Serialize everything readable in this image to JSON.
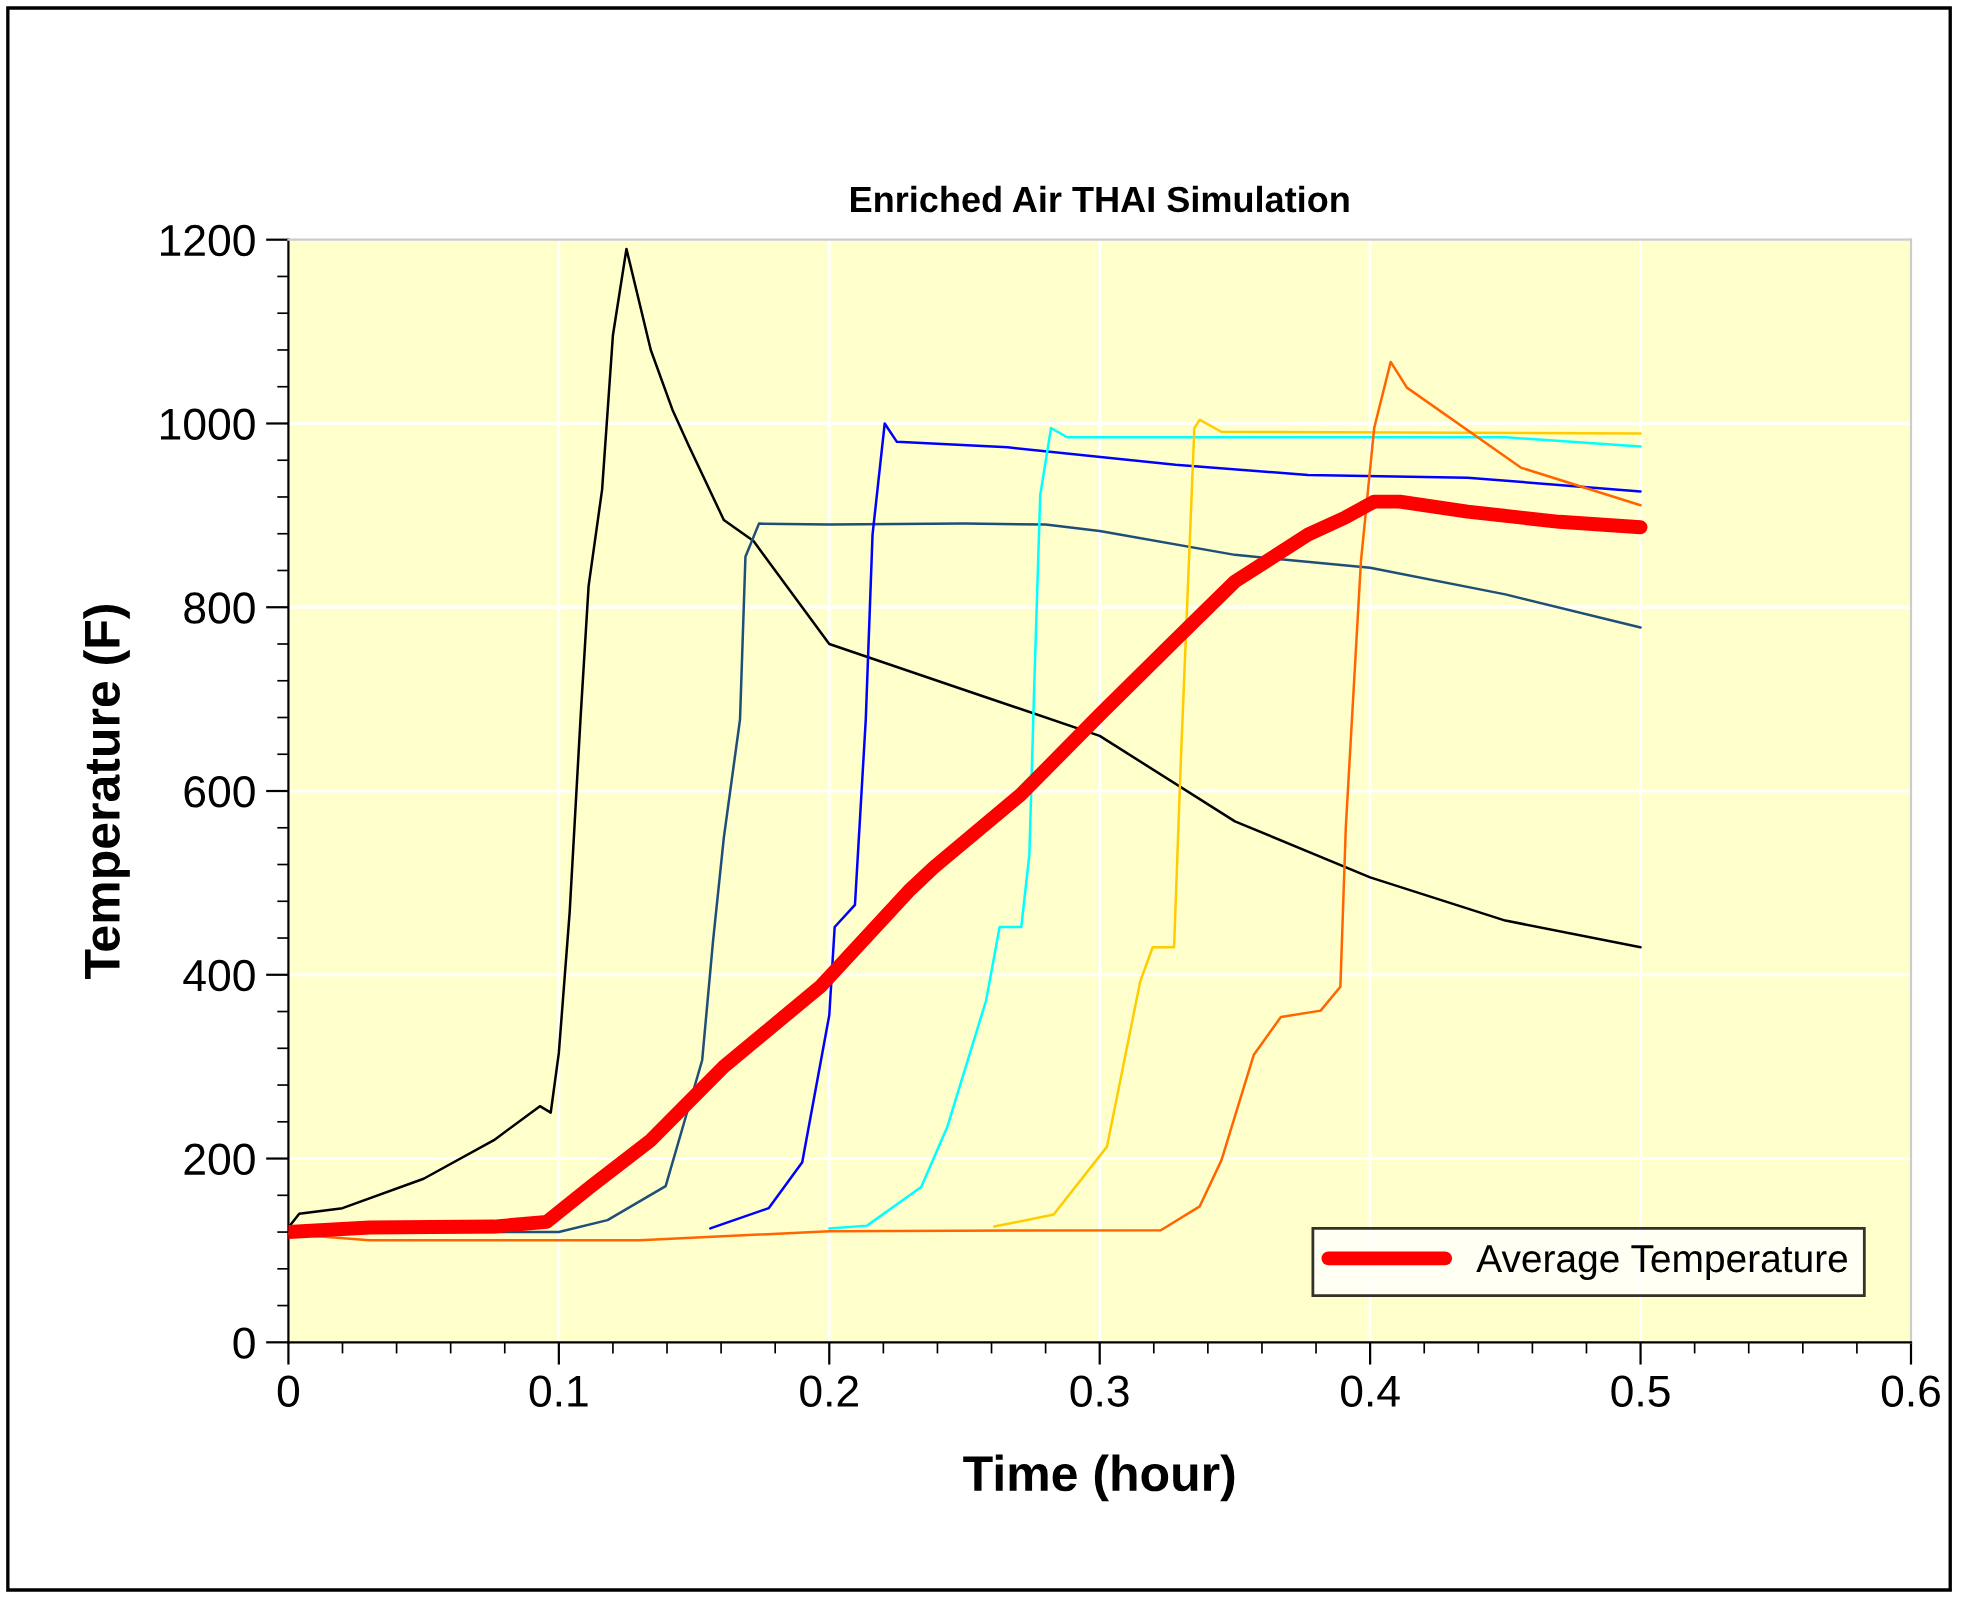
{
  "chart_data": {
    "type": "line",
    "title": "Enriched Air THAI Simulation",
    "xlabel": "Time (hour)",
    "ylabel": "Temperature (F)",
    "xlim": [
      0,
      0.6
    ],
    "xticks": [
      0,
      0.1,
      0.2,
      0.3,
      0.4,
      0.5,
      0.6
    ],
    "ylim": [
      0,
      1200
    ],
    "yticks": [
      0,
      200,
      400,
      600,
      800,
      1000,
      1200
    ],
    "grid": true,
    "legend": "bottom right",
    "marker": "none",
    "line_style": "solid",
    "series": [
      {
        "color": "#000000",
        "x": [
          0,
          0.004,
          0.02,
          0.05,
          0.076,
          0.093,
          0.097,
          0.1,
          0.104,
          0.108,
          0.111,
          0.116,
          0.12,
          0.125,
          0.134,
          0.142,
          0.148,
          0.161,
          0.172,
          0.2,
          0.256,
          0.3,
          0.35,
          0.4,
          0.45,
          0.5
        ],
        "values": [
          125,
          140,
          146,
          178,
          220,
          257,
          250,
          315,
          468,
          678,
          823,
          928,
          1096,
          1190,
          1080,
          1015,
          976,
          895,
          872,
          760,
          704,
          660,
          567,
          506,
          459,
          430
        ]
      },
      {
        "color": "#1f4e79",
        "x": [
          0,
          0.1,
          0.118,
          0.1395,
          0.153,
          0.157,
          0.161,
          0.167,
          0.169,
          0.174,
          0.2,
          0.25,
          0.28,
          0.3,
          0.35,
          0.4,
          0.45,
          0.5
        ],
        "values": [
          120,
          120,
          133,
          170,
          307,
          436,
          549,
          678,
          855,
          891,
          890,
          891,
          890,
          883,
          857,
          843,
          814,
          778
        ]
      },
      {
        "color": "#0000ff",
        "x": [
          0.156,
          0.1776,
          0.19,
          0.2,
          0.202,
          0.2095,
          0.2135,
          0.216,
          0.2205,
          0.225,
          0.266,
          0.328,
          0.377,
          0.436,
          0.5
        ],
        "values": [
          124,
          146,
          196,
          356,
          452,
          476,
          678,
          879,
          1000,
          980,
          974,
          955,
          944,
          941,
          926
        ]
      },
      {
        "color": "#00ffff",
        "x": [
          0.2,
          0.214,
          0.234,
          0.2436,
          0.258,
          0.263,
          0.271,
          0.274,
          0.2757,
          0.278,
          0.282,
          0.288,
          0.45,
          0.5
        ],
        "values": [
          124,
          127,
          169,
          234,
          372,
          452,
          452,
          531,
          705,
          922,
          995,
          985,
          985,
          975
        ]
      },
      {
        "color": "#ffcc00",
        "x": [
          0.261,
          0.283,
          0.3027,
          0.315,
          0.3196,
          0.3275,
          0.33,
          0.335,
          0.337,
          0.345,
          0.5
        ],
        "values": [
          126,
          139,
          213,
          393,
          430,
          430,
          633,
          995,
          1004,
          991,
          989
        ]
      },
      {
        "color": "#ff6600",
        "x": [
          0,
          0.03,
          0.13,
          0.2,
          0.3226,
          0.337,
          0.345,
          0.357,
          0.367,
          0.3817,
          0.389,
          0.391,
          0.3966,
          0.4015,
          0.4076,
          0.4136,
          0.4557,
          0.5
        ],
        "values": [
          118,
          111,
          111,
          121,
          122,
          148,
          198,
          313,
          354,
          361,
          387,
          560,
          850,
          995,
          1067,
          1039,
          952,
          911
        ]
      },
      {
        "name": "Average Temperature",
        "color": "#ff0000",
        "x": [
          0,
          0.03,
          0.076,
          0.0955,
          0.112,
          0.134,
          0.161,
          0.197,
          0.23,
          0.2387,
          0.2708,
          0.3,
          0.3275,
          0.35,
          0.377,
          0.391,
          0.4015,
          0.411,
          0.436,
          0.47,
          0.5
        ],
        "values": [
          120,
          125,
          126,
          131,
          170,
          220,
          300,
          388,
          493,
          517,
          596,
          683,
          763,
          828,
          879,
          898,
          915,
          915,
          904,
          893,
          887
        ]
      }
    ]
  }
}
